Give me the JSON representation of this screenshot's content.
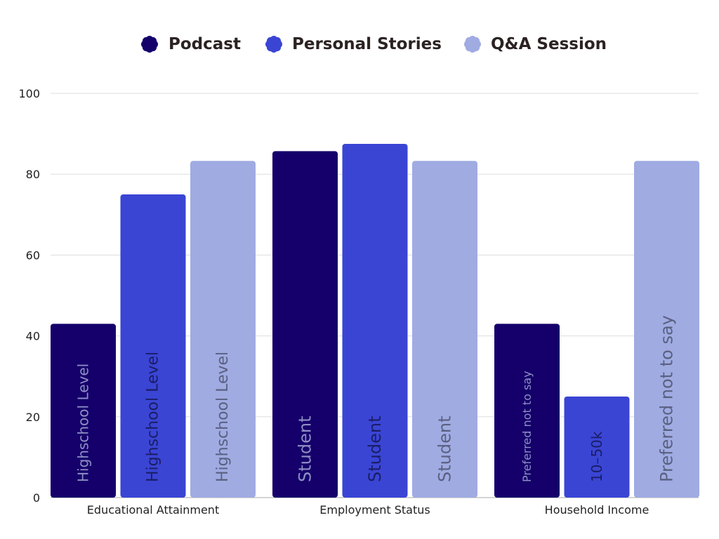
{
  "colors": {
    "series": [
      "#15006b",
      "#3a45d4",
      "#a0abe2"
    ],
    "grid": "#dddddd",
    "axis": "#aaaaaa"
  },
  "chart_data": {
    "type": "bar",
    "title": "",
    "xlabel": "",
    "ylabel": "",
    "ylim": [
      0,
      100
    ],
    "yticks": [
      0,
      20,
      40,
      60,
      80,
      100
    ],
    "grid": true,
    "legend_position": "top-center",
    "categories": [
      "Educational Attainment",
      "Employment Status",
      "Household Income"
    ],
    "series": [
      {
        "name": "Podcast",
        "values": [
          43,
          85.7,
          43
        ],
        "labels": [
          "Highschool Level",
          "Student",
          "Preferred not to say"
        ]
      },
      {
        "name": "Personal Stories",
        "values": [
          75,
          87.5,
          25
        ],
        "labels": [
          "Highschool Level",
          "Student",
          "10–50k"
        ]
      },
      {
        "name": "Q&A Session",
        "values": [
          83.3,
          83.3,
          83.3
        ],
        "labels": [
          "Highschool Level",
          "Student",
          "Preferred not to say"
        ]
      }
    ]
  }
}
